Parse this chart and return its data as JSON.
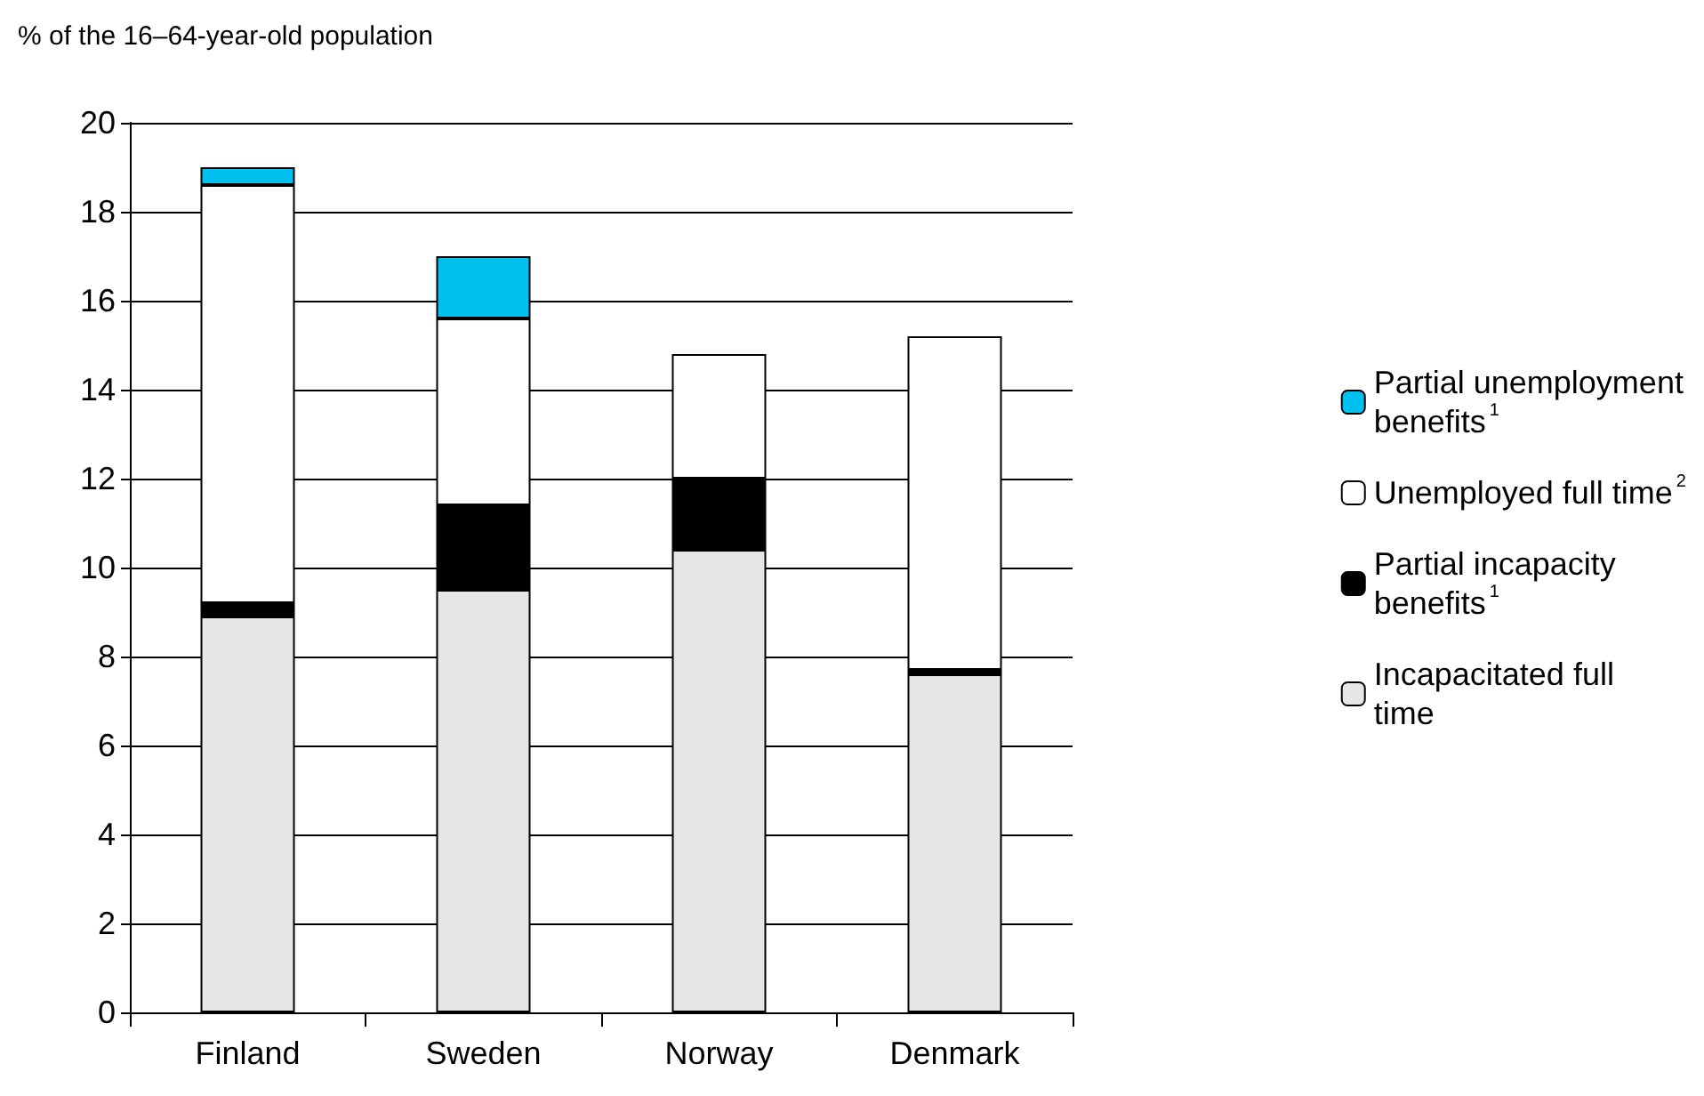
{
  "chart_data": {
    "type": "bar",
    "stacked": true,
    "ylabel": "% of the 16–64-year-old population",
    "categories": [
      "Finland",
      "Sweden",
      "Norway",
      "Denmark"
    ],
    "series": [
      {
        "name": "Incapacitated full time",
        "color": "#e6e6e6",
        "values": [
          8.9,
          9.5,
          10.4,
          7.6
        ]
      },
      {
        "name": "Partial incapacity benefits$^{1}$",
        "color": "#000000",
        "values": [
          0.3,
          1.9,
          1.6,
          0.1
        ]
      },
      {
        "name": "Unemployed full time$^{2}$",
        "color": "#ffffff",
        "values": [
          9.4,
          4.2,
          2.8,
          7.5
        ]
      },
      {
        "name": "Partial unemployment benefits$^{1}$",
        "color": "#00c0f0",
        "values": [
          0.4,
          1.4,
          null,
          null
        ]
      }
    ],
    "ylim": [
      0,
      20
    ],
    "yticks": [
      0,
      2,
      4,
      6,
      8,
      10,
      12,
      14,
      16,
      18,
      20
    ],
    "grid": "y",
    "legend": "right"
  }
}
